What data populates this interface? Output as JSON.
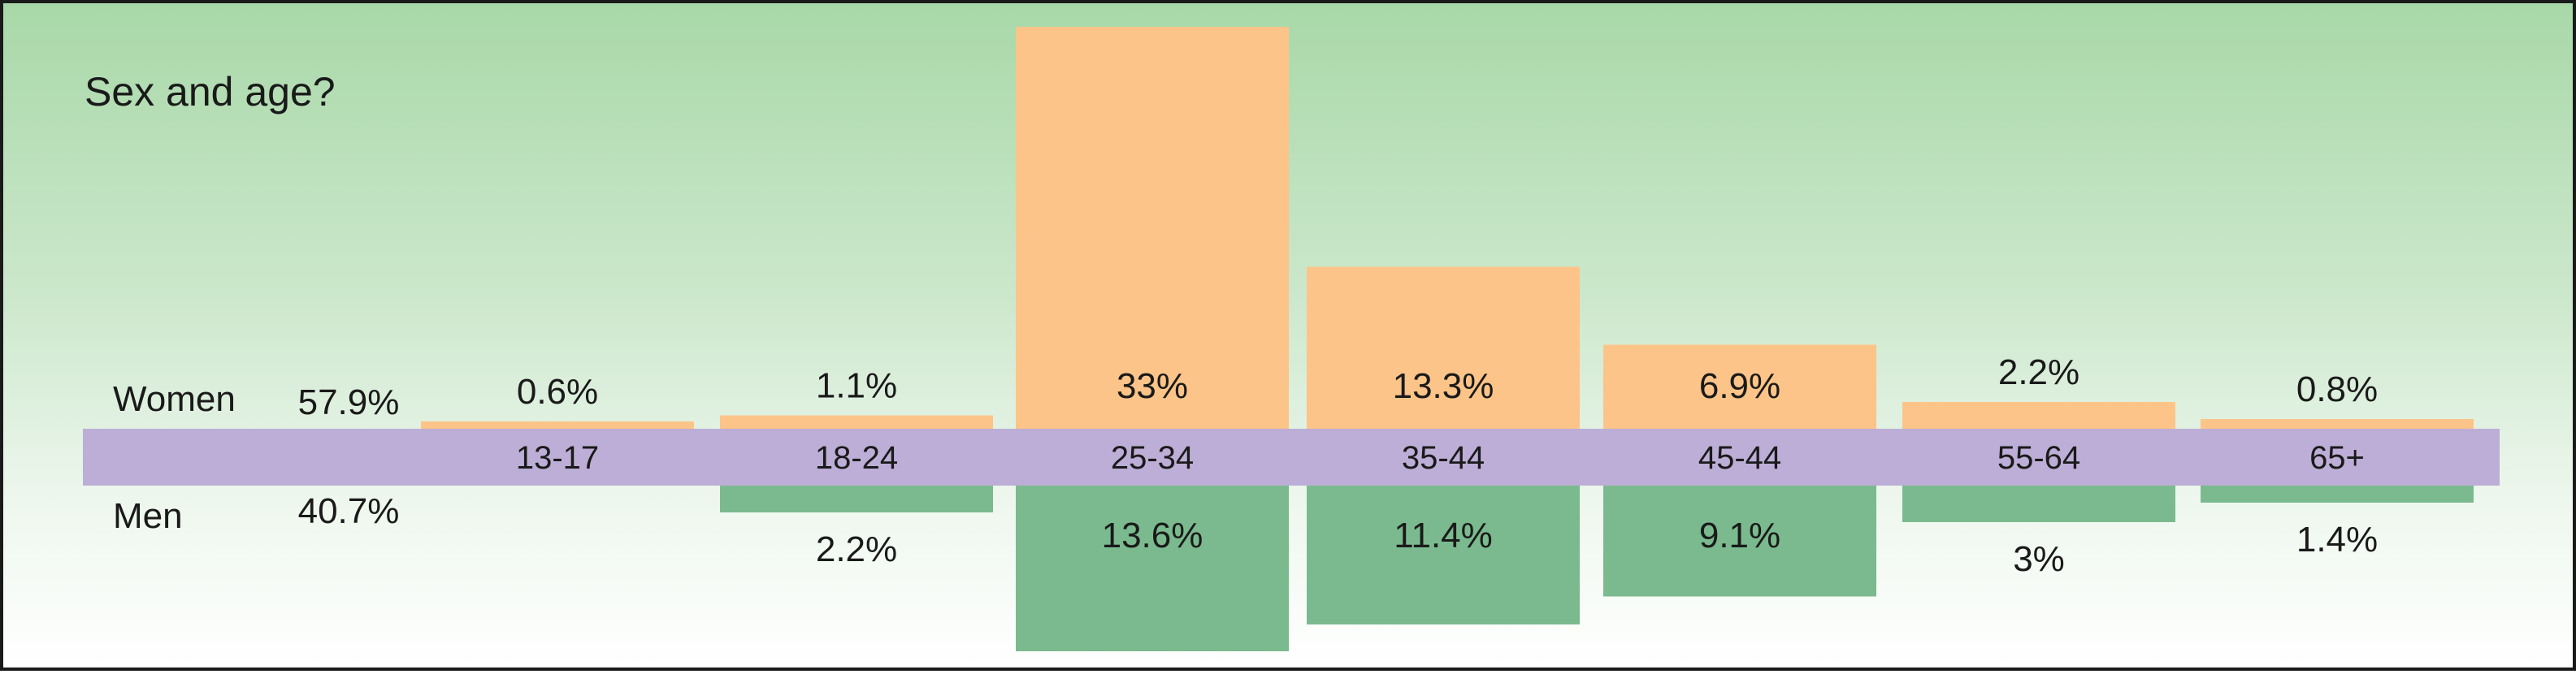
{
  "chart_data": {
    "type": "bar",
    "title": "Sex and age?",
    "categories": [
      "13-17",
      "18-24",
      "25-34",
      "35-44",
      "45-44",
      "55-64",
      "65+"
    ],
    "series": [
      {
        "name": "Women",
        "total_label": "57.9%",
        "values": [
          0.6,
          1.1,
          33,
          13.3,
          6.9,
          2.2,
          0.8
        ],
        "labels": [
          "0.6%",
          "1.1%",
          "33%",
          "13.3%",
          "6.9%",
          "2.2%",
          "0.8%"
        ]
      },
      {
        "name": "Men",
        "total_label": "40.7%",
        "values": [
          0,
          2.2,
          13.6,
          11.4,
          9.1,
          3,
          1.4
        ],
        "labels": [
          "",
          "2.2%",
          "13.6%",
          "11.4%",
          "9.1%",
          "3%",
          "1.4%"
        ]
      }
    ],
    "colors": {
      "women": "#fcc488",
      "men": "#7aba8e",
      "axis_band": "#bcaed6",
      "inside_label": "#ffffff",
      "outside_label": "#1a1a1a"
    }
  }
}
